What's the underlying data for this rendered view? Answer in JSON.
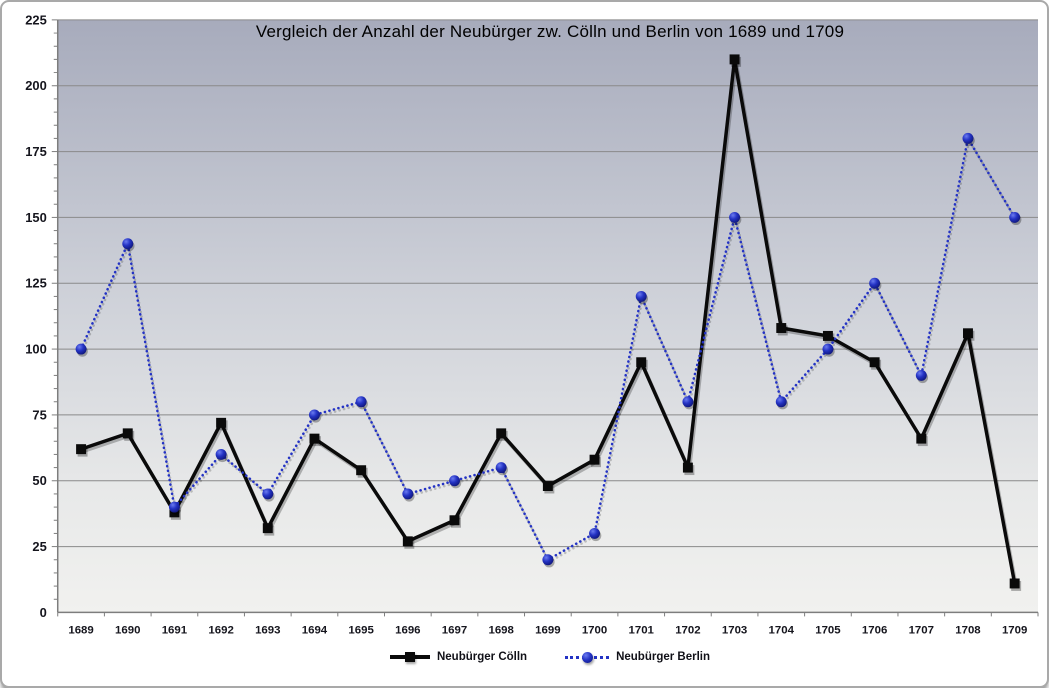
{
  "chart_data": {
    "type": "line",
    "title": "Vergleich der Anzahl der Neubürger zw. Cölln und Berlin von 1689 und 1709",
    "xlabel": "",
    "ylabel": "",
    "categories": [
      "1689",
      "1690",
      "1691",
      "1692",
      "1693",
      "1694",
      "1695",
      "1696",
      "1697",
      "1698",
      "1699",
      "1700",
      "1701",
      "1702",
      "1703",
      "1704",
      "1705",
      "1706",
      "1707",
      "1708",
      "1709"
    ],
    "series": [
      {
        "name": "Neubürger Cölln",
        "color": "#0a0a0a",
        "marker": "square",
        "line_style": "solid",
        "values": [
          62,
          68,
          38,
          72,
          32,
          66,
          54,
          27,
          35,
          68,
          48,
          58,
          95,
          55,
          210,
          108,
          105,
          95,
          66,
          106,
          11
        ]
      },
      {
        "name": "Neubürger Berlin",
        "color": "#2433c4",
        "marker": "circle",
        "line_style": "dotted",
        "values": [
          100,
          140,
          40,
          60,
          45,
          75,
          80,
          45,
          50,
          55,
          20,
          30,
          120,
          80,
          150,
          80,
          100,
          125,
          90,
          180,
          150
        ]
      }
    ],
    "ylim": [
      0,
      225
    ],
    "y_ticks": [
      0,
      25,
      50,
      75,
      100,
      125,
      150,
      175,
      200,
      225
    ],
    "y_minor_step": 5,
    "grid": "horizontal",
    "legend_position": "bottom",
    "plot_colors": {
      "bg_top": "#a7abbc",
      "bg_upper_mid": "#cdd0d8",
      "bg_lower_mid": "#e8e9e9",
      "bg_bottom": "#f1f1ef",
      "gridline": "#8a8a8a",
      "axis": "#7d7d7d",
      "tick_label": "#15151d",
      "title_color": "#000000"
    }
  }
}
